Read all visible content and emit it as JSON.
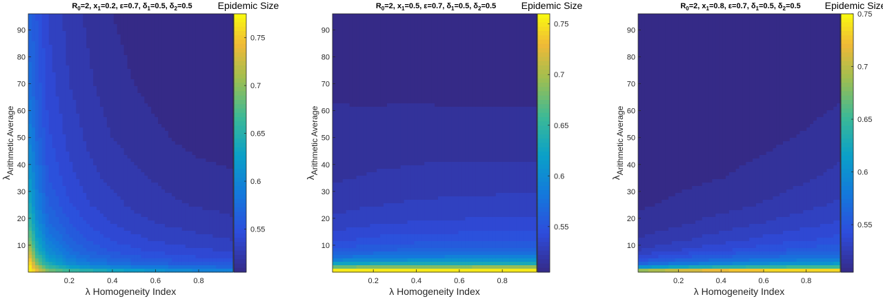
{
  "chart_data": [
    {
      "type": "heatmap",
      "subtype": "filled-contour",
      "title": "R0=2, x1=0.2, ε=0.7, δ1=0.5, δ2=0.5",
      "title_parts": {
        "R": "R",
        "R_sub": "0",
        "eq1": "=2, x",
        "x_sub": "1",
        "eq2": "=0.2, ε=0.7, δ",
        "d1_sub": "1",
        "eq3": "=0.5, δ",
        "d2_sub": "2",
        "eq4": "=0.5"
      },
      "xlabel": "λ Homogeneity Index",
      "ylabel": "λ",
      "ylabel_sub": "Arithmetic Average",
      "xlim": [
        0.01,
        0.96
      ],
      "ylim": [
        0,
        96
      ],
      "xticks": [
        0.2,
        0.4,
        0.6,
        0.8
      ],
      "yticks": [
        10,
        20,
        30,
        40,
        50,
        60,
        70,
        80,
        90
      ],
      "colorbar_title": "Epidemic Size",
      "colorbar_range": [
        0.505,
        0.775
      ],
      "colorbar_ticks": [
        0.55,
        0.6,
        0.65,
        0.7,
        0.75
      ],
      "colorbar_ticklabels": [
        "0.55",
        "0.6",
        "0.65",
        "0.7",
        "0.75"
      ],
      "x_vals": [
        0.02,
        0.05,
        0.1,
        0.2,
        0.3,
        0.4,
        0.5,
        0.6,
        0.7,
        0.8,
        0.9,
        0.96
      ],
      "y_vals": [
        0.5,
        1.5,
        3,
        5,
        8,
        12,
        18,
        25,
        35,
        50,
        70,
        96
      ],
      "z": [
        [
          0.775,
          0.74,
          0.7,
          0.67,
          0.655,
          0.64,
          0.63,
          0.62,
          0.61,
          0.605,
          0.6,
          0.598
        ],
        [
          0.77,
          0.73,
          0.68,
          0.64,
          0.62,
          0.61,
          0.6,
          0.595,
          0.59,
          0.585,
          0.582,
          0.58
        ],
        [
          0.76,
          0.7,
          0.65,
          0.61,
          0.595,
          0.585,
          0.578,
          0.572,
          0.568,
          0.565,
          0.562,
          0.56
        ],
        [
          0.745,
          0.68,
          0.63,
          0.595,
          0.58,
          0.57,
          0.563,
          0.558,
          0.555,
          0.552,
          0.55,
          0.549
        ],
        [
          0.72,
          0.655,
          0.61,
          0.58,
          0.566,
          0.558,
          0.552,
          0.548,
          0.545,
          0.543,
          0.541,
          0.54
        ],
        [
          0.69,
          0.635,
          0.595,
          0.57,
          0.557,
          0.549,
          0.544,
          0.54,
          0.537,
          0.535,
          0.533,
          0.532
        ],
        [
          0.66,
          0.615,
          0.58,
          0.56,
          0.548,
          0.541,
          0.536,
          0.532,
          0.53,
          0.528,
          0.526,
          0.525
        ],
        [
          0.64,
          0.6,
          0.57,
          0.551,
          0.541,
          0.535,
          0.53,
          0.527,
          0.524,
          0.522,
          0.521,
          0.52
        ],
        [
          0.62,
          0.59,
          0.56,
          0.544,
          0.535,
          0.529,
          0.525,
          0.522,
          0.519,
          0.517,
          0.516,
          0.515
        ],
        [
          0.6,
          0.575,
          0.552,
          0.538,
          0.529,
          0.523,
          0.519,
          0.516,
          0.513,
          0.511,
          0.51,
          0.509
        ],
        [
          0.58,
          0.565,
          0.546,
          0.532,
          0.524,
          0.518,
          0.514,
          0.511,
          0.508,
          0.507,
          0.506,
          0.505
        ],
        [
          0.57,
          0.558,
          0.54,
          0.528,
          0.52,
          0.514,
          0.51,
          0.507,
          0.505,
          0.505,
          0.505,
          0.505
        ]
      ]
    },
    {
      "type": "heatmap",
      "subtype": "filled-contour",
      "title": "R0=2, x1=0.5, ε=0.7, δ1=0.5, δ2=0.5",
      "title_parts": {
        "R": "R",
        "R_sub": "0",
        "eq1": "=2, x",
        "x_sub": "1",
        "eq2": "=0.5, ε=0.7, δ",
        "d1_sub": "1",
        "eq3": "=0.5, δ",
        "d2_sub": "2",
        "eq4": "=0.5"
      },
      "xlabel": "λ Homogeneity Index",
      "ylabel": "λ",
      "ylabel_sub": "Arithmetic Average",
      "xlim": [
        0.01,
        0.96
      ],
      "ylim": [
        0,
        96
      ],
      "xticks": [
        0.2,
        0.4,
        0.6,
        0.8
      ],
      "yticks": [
        10,
        20,
        30,
        40,
        50,
        60,
        70,
        80,
        90
      ],
      "colorbar_title": "Epidemic Size",
      "colorbar_range": [
        0.505,
        0.76
      ],
      "colorbar_ticks": [
        0.55,
        0.6,
        0.65,
        0.7,
        0.75
      ],
      "colorbar_ticklabels": [
        "0.55",
        "0.6",
        "0.65",
        "0.7",
        "0.75"
      ],
      "x_vals": [
        0.02,
        0.2,
        0.4,
        0.6,
        0.8,
        0.96
      ],
      "y_vals": [
        0.5,
        1.5,
        3,
        5,
        8,
        12,
        18,
        25,
        35,
        50,
        70,
        96
      ],
      "z": [
        [
          0.76,
          0.76,
          0.76,
          0.76,
          0.76,
          0.76
        ],
        [
          0.7,
          0.705,
          0.708,
          0.71,
          0.712,
          0.712
        ],
        [
          0.63,
          0.638,
          0.642,
          0.644,
          0.645,
          0.645
        ],
        [
          0.585,
          0.592,
          0.596,
          0.598,
          0.6,
          0.6
        ],
        [
          0.558,
          0.564,
          0.567,
          0.569,
          0.57,
          0.57
        ],
        [
          0.545,
          0.55,
          0.552,
          0.553,
          0.554,
          0.554
        ],
        [
          0.534,
          0.538,
          0.54,
          0.541,
          0.542,
          0.542
        ],
        [
          0.527,
          0.53,
          0.532,
          0.533,
          0.534,
          0.534
        ],
        [
          0.521,
          0.523,
          0.524,
          0.525,
          0.525,
          0.525
        ],
        [
          0.516,
          0.517,
          0.518,
          0.518,
          0.518,
          0.518
        ],
        [
          0.512,
          0.511,
          0.511,
          0.51,
          0.51,
          0.51
        ],
        [
          0.508,
          0.507,
          0.506,
          0.506,
          0.506,
          0.506
        ]
      ]
    },
    {
      "type": "heatmap",
      "subtype": "filled-contour",
      "title": "R0=2, x1=0.8, ε=0.7, δ1=0.5, δ2=0.5",
      "title_parts": {
        "R": "R",
        "R_sub": "0",
        "eq1": "=2, x",
        "x_sub": "1",
        "eq2": "=0.8, ε=0.7, δ",
        "d1_sub": "1",
        "eq3": "=0.5, δ",
        "d2_sub": "2",
        "eq4": "=0.5"
      },
      "xlabel": "λ Homogeneity Index",
      "ylabel": "λ",
      "ylabel_sub": "Arithmetic Average",
      "xlim": [
        0.01,
        0.96
      ],
      "ylim": [
        0,
        96
      ],
      "xticks": [
        0.2,
        0.4,
        0.6,
        0.8
      ],
      "yticks": [
        10,
        20,
        30,
        40,
        50,
        60,
        70,
        80,
        90
      ],
      "colorbar_title": "Epidemic Size",
      "colorbar_range": [
        0.505,
        0.75
      ],
      "colorbar_ticks": [
        0.55,
        0.6,
        0.65,
        0.7,
        0.75
      ],
      "colorbar_ticklabels": [
        "0.55",
        "0.6",
        "0.65",
        "0.7",
        "0.75"
      ],
      "x_vals": [
        0.02,
        0.2,
        0.4,
        0.6,
        0.8,
        0.96
      ],
      "y_vals": [
        0.5,
        1.5,
        3,
        5,
        8,
        12,
        18,
        25,
        35,
        50,
        70,
        96
      ],
      "z": [
        [
          0.7,
          0.72,
          0.735,
          0.745,
          0.75,
          0.75
        ],
        [
          0.62,
          0.64,
          0.655,
          0.665,
          0.672,
          0.675
        ],
        [
          0.57,
          0.585,
          0.595,
          0.605,
          0.612,
          0.615
        ],
        [
          0.545,
          0.556,
          0.565,
          0.573,
          0.58,
          0.583
        ],
        [
          0.53,
          0.538,
          0.545,
          0.552,
          0.558,
          0.562
        ],
        [
          0.522,
          0.528,
          0.534,
          0.54,
          0.545,
          0.549
        ],
        [
          0.516,
          0.52,
          0.525,
          0.53,
          0.535,
          0.539
        ],
        [
          0.512,
          0.515,
          0.518,
          0.522,
          0.527,
          0.531
        ],
        [
          0.509,
          0.511,
          0.513,
          0.516,
          0.52,
          0.524
        ],
        [
          0.507,
          0.508,
          0.509,
          0.511,
          0.514,
          0.517
        ],
        [
          0.506,
          0.506,
          0.507,
          0.508,
          0.509,
          0.511
        ],
        [
          0.505,
          0.505,
          0.505,
          0.506,
          0.507,
          0.508
        ]
      ]
    }
  ]
}
